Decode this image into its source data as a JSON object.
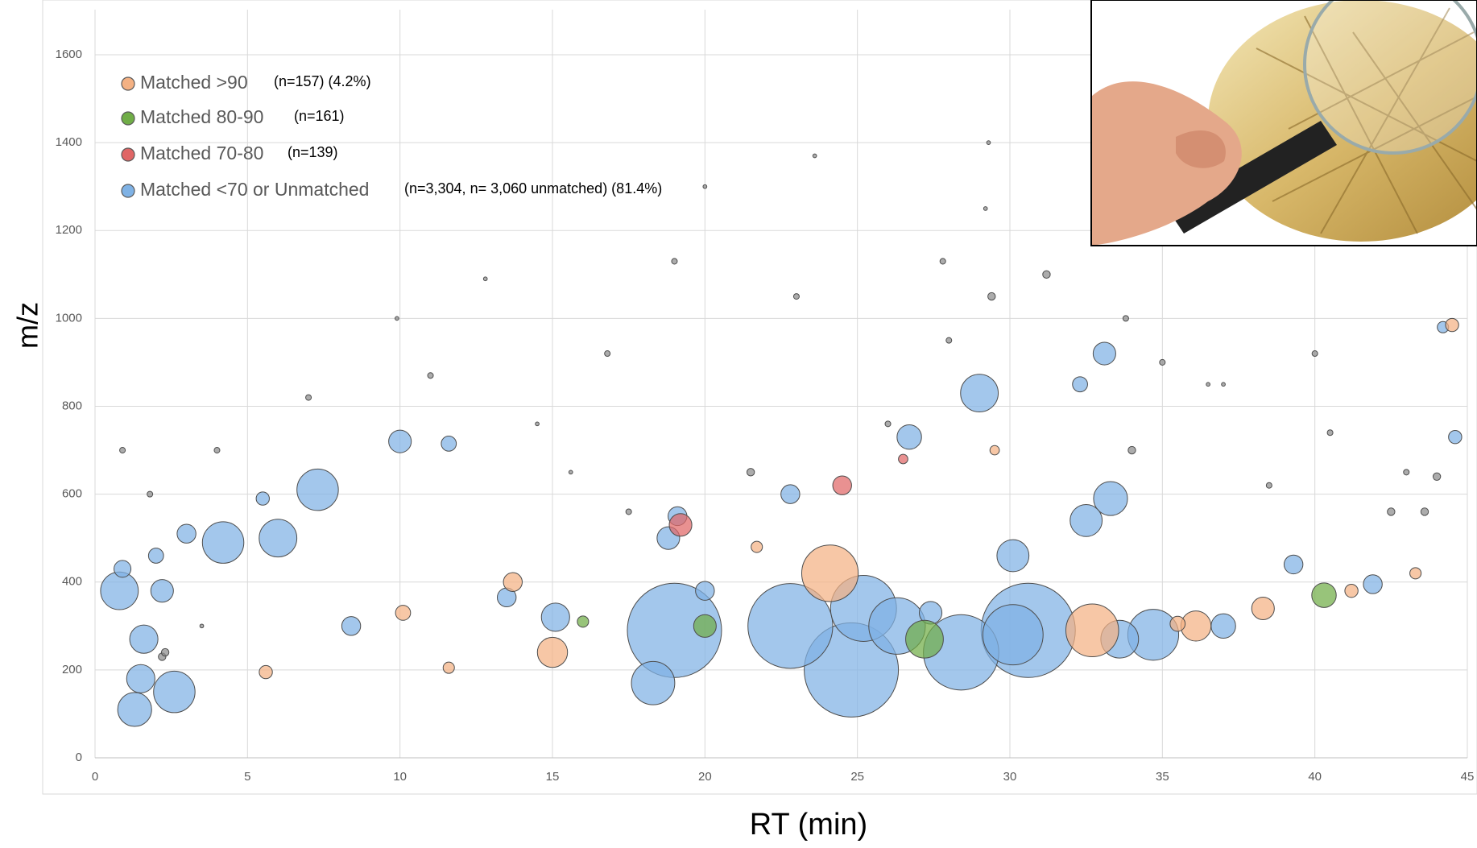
{
  "chart_data": {
    "type": "bubble",
    "x_label": "RT (min)",
    "y_label": "m/z",
    "xlim": [
      0,
      45
    ],
    "ylim": [
      0,
      1700
    ],
    "xticks": [
      0,
      5,
      10,
      15,
      20,
      25,
      30,
      35,
      40,
      45
    ],
    "yticks": [
      0,
      200,
      400,
      600,
      800,
      1000,
      1200,
      1400,
      1600
    ],
    "grid": true,
    "legend": "upper-left",
    "series": [
      {
        "name": "Matched >90",
        "count_label": "(n=157) (4.2%)",
        "color": "#f4b183",
        "x": [
          24.1,
          32.7,
          36.1,
          38.3,
          15,
          13.7,
          10.1,
          5.6,
          11.6,
          44.5,
          43.3,
          41.2,
          29.5,
          21.7,
          35.5
        ],
        "values": [
          420,
          290,
          300,
          340,
          240,
          400,
          330,
          195,
          205,
          985,
          420,
          380,
          700,
          480,
          305
        ],
        "sizes": [
          30,
          28,
          16,
          12,
          16,
          10,
          8,
          7,
          6,
          7,
          6,
          7,
          5,
          6,
          8
        ]
      },
      {
        "name": "Matched  80-90",
        "count_label": "(n=161)",
        "color": "#70ad47",
        "x": [
          40.3,
          27.2,
          20,
          16,
          43.6,
          2.2
        ],
        "values": [
          370,
          270,
          300,
          310,
          560,
          230
        ],
        "sizes": [
          13,
          20,
          12,
          6,
          4,
          4
        ]
      },
      {
        "name": "Matched 70-80",
        "count_label": "(n=139)",
        "color": "#e06666",
        "x": [
          19.2,
          24.5,
          26.5,
          2.3
        ],
        "values": [
          530,
          620,
          680,
          240
        ],
        "sizes": [
          12,
          10,
          5,
          4
        ]
      },
      {
        "name": "Matched <70 or Unmatched",
        "count_label": "(n=3,304, n= 3,060 unmatched) (81.4%)",
        "color": "#7fb2e5",
        "x": [
          0.8,
          1.3,
          1.5,
          2.6,
          4.2,
          6,
          7.3,
          1.6,
          2.2,
          10,
          11.6,
          15.1,
          13.5,
          18.3,
          19,
          18.8,
          19.1,
          22.8,
          24.8,
          25.2,
          26.3,
          28.4,
          30.6,
          30.1,
          32.5,
          33.3,
          33.1,
          29,
          26.7,
          30.1,
          34.7,
          33.6,
          37,
          39.3,
          41.9,
          44.2,
          32.3,
          22.8,
          2,
          3,
          0.9,
          8.4,
          5.5,
          27.4,
          20,
          15.6,
          9.9,
          23.6,
          29.3,
          29.2,
          12.8,
          19,
          40.5,
          44.6,
          43,
          37,
          35,
          20,
          0.9,
          1.8,
          31.2,
          17.5,
          21.5,
          26,
          28,
          34,
          38.5,
          42.5,
          11,
          7,
          4,
          3.5,
          14.5,
          16.8,
          23,
          27.8,
          29.4,
          33.8,
          36.5,
          40,
          44
        ],
        "values": [
          380,
          110,
          180,
          150,
          490,
          500,
          610,
          270,
          380,
          720,
          715,
          320,
          365,
          170,
          290,
          500,
          550,
          300,
          200,
          340,
          300,
          240,
          290,
          280,
          540,
          590,
          920,
          830,
          730,
          460,
          280,
          270,
          300,
          440,
          395,
          980,
          850,
          600,
          460,
          510,
          430,
          300,
          590,
          330,
          380,
          650,
          1000,
          1370,
          1400,
          1250,
          1090,
          1130,
          740,
          730,
          650,
          850,
          900,
          1300,
          700,
          600,
          1100,
          560,
          650,
          760,
          950,
          700,
          620,
          560,
          870,
          820,
          700,
          300,
          760,
          920,
          1050,
          1130,
          1050,
          1000,
          850,
          920,
          640
        ],
        "sizes": [
          20,
          18,
          15,
          22,
          22,
          20,
          22,
          15,
          12,
          12,
          8,
          15,
          10,
          23,
          50,
          12,
          10,
          45,
          50,
          35,
          30,
          40,
          50,
          32,
          17,
          18,
          12,
          20,
          13,
          17,
          27,
          20,
          13,
          10,
          10,
          6,
          8,
          10,
          8,
          10,
          9,
          10,
          7,
          12,
          10,
          2,
          2,
          2,
          2,
          2,
          2,
          3,
          3,
          7,
          3,
          2,
          3,
          2,
          3,
          3,
          4,
          3,
          4,
          3,
          3,
          4,
          3,
          4,
          3,
          3,
          3,
          2,
          2,
          3,
          3,
          3,
          4,
          3,
          2,
          3,
          4
        ]
      }
    ]
  }
}
